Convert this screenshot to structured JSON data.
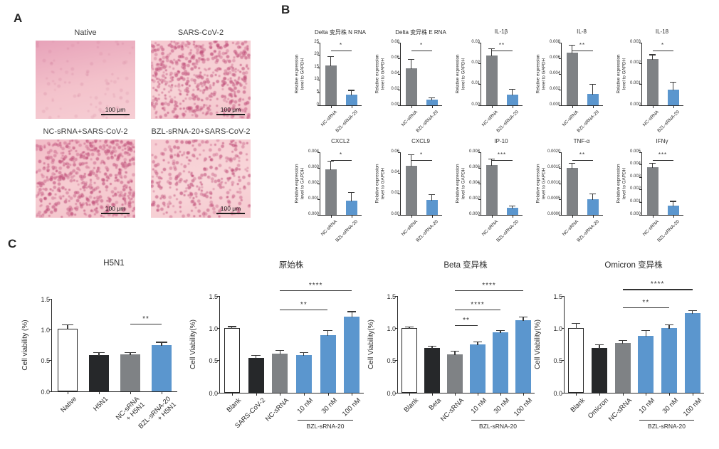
{
  "panel_a": {
    "label": "A",
    "images": [
      {
        "title": "Native",
        "scale_label": "100 μm",
        "density": "sparse",
        "bg": [
          "#e7a2b9",
          "#f3c2cb",
          "#f6ced4"
        ]
      },
      {
        "title": "SARS-CoV-2",
        "scale_label": "100 μm",
        "density": "dense",
        "bg": [
          "#f5c8d0",
          "#f7d3d6",
          "#f3c4cc"
        ]
      },
      {
        "title": "NC-sRNA+SARS-CoV-2",
        "scale_label": "100 μm",
        "density": "dense",
        "bg": [
          "#f2bcc7",
          "#f6cdd2",
          "#f3c3cb"
        ]
      },
      {
        "title": "BZL-sRNA-20+SARS-CoV-2",
        "scale_label": "100 μm",
        "density": "medium",
        "bg": [
          "#f6ccd2",
          "#f8d6d9",
          "#f5c9cf"
        ]
      }
    ]
  },
  "panel_b": {
    "label": "B"
  },
  "panel_c": {
    "label": "C"
  },
  "colors": {
    "bar_gray": "#7f8285",
    "bar_blue": "#5b96ce",
    "bar_black": "#26282a",
    "bar_white": "#ffffff",
    "axis": "#2a2a2a",
    "micro_dot": "rgba(192,80,122",
    "micro_dot_faint": "rgba(205,120,150"
  },
  "chart_data": [
    {
      "panel": "B",
      "id": "delta-n-rna",
      "type": "bar",
      "title": "Delta 变异株  N RNA",
      "ylabel": "Relative expression\nlevel to GAPDH",
      "categories": [
        "NC-sRNA",
        "BZL-sRNA-20"
      ],
      "values": [
        16,
        4.3
      ],
      "errors": [
        3.3,
        1.5
      ],
      "bar_colors": [
        "gray",
        "blue"
      ],
      "ylim": [
        0,
        25
      ],
      "yticks": [
        "0",
        "5",
        "10",
        "15",
        "20",
        "25"
      ],
      "sig": [
        {
          "from": 0,
          "to": 1,
          "stars": "*"
        }
      ]
    },
    {
      "panel": "B",
      "id": "delta-e-rna",
      "type": "bar",
      "title": "Delta 变异株  E RNA",
      "ylabel": "Relative expression\nlevel to GAPDH",
      "categories": [
        "NC-sRNA",
        "BZL-sRNA-20"
      ],
      "values": [
        0.047,
        0.007
      ],
      "errors": [
        0.011,
        0.002
      ],
      "bar_colors": [
        "gray",
        "blue"
      ],
      "ylim": [
        0,
        0.08
      ],
      "yticks": [
        "0.00",
        "0.02",
        "0.04",
        "0.06",
        "0.08"
      ],
      "sig": [
        {
          "from": 0,
          "to": 1,
          "stars": "*"
        }
      ]
    },
    {
      "panel": "B",
      "id": "il-1b",
      "type": "bar",
      "title": "IL-1β",
      "ylabel": "Relative expression\nlevel to GAPDH",
      "categories": [
        "NC-sRNA",
        "BZL-sRNA-20"
      ],
      "values": [
        0.024,
        0.005
      ],
      "errors": [
        0.003,
        0.0025
      ],
      "bar_colors": [
        "gray",
        "blue"
      ],
      "ylim": [
        0,
        0.03
      ],
      "yticks": [
        "0.00",
        "0.01",
        "0.02",
        "0.03"
      ],
      "sig": [
        {
          "from": 0,
          "to": 1,
          "stars": "**"
        }
      ]
    },
    {
      "panel": "B",
      "id": "il-8",
      "type": "bar",
      "title": "IL-8",
      "ylabel": "Relative expression\nlevel to GAPDH",
      "categories": [
        "NC-sRNA",
        "BZL-sRNA-20"
      ],
      "values": [
        0.0067,
        0.0015
      ],
      "errors": [
        0.0009,
        0.0011
      ],
      "bar_colors": [
        "gray",
        "blue"
      ],
      "ylim": [
        0,
        0.008
      ],
      "yticks": [
        "0.000",
        "0.002",
        "0.004",
        "0.006",
        "0.008"
      ],
      "sig": [
        {
          "from": 0,
          "to": 1,
          "stars": "**"
        }
      ]
    },
    {
      "panel": "B",
      "id": "il-18",
      "type": "bar",
      "title": "IL-18",
      "ylabel": "Relative expression\nlevel to GAPDH",
      "categories": [
        "NC-sRNA",
        "BZL-sRNA-20"
      ],
      "values": [
        0.0022,
        0.00075
      ],
      "errors": [
        0.0002,
        0.00035
      ],
      "bar_colors": [
        "gray",
        "blue"
      ],
      "ylim": [
        0,
        0.003
      ],
      "yticks": [
        "0.000",
        "0.001",
        "0.002",
        "0.003"
      ],
      "sig": [
        {
          "from": 0,
          "to": 1,
          "stars": "*"
        }
      ]
    },
    {
      "panel": "B",
      "id": "cxcl2",
      "type": "bar",
      "title": "CXCL2",
      "ylabel": "Relative expression\nlevel to GAPDH",
      "categories": [
        "NC-sRNA",
        "BZL-sRNA-20"
      ],
      "values": [
        0.0029,
        0.0009
      ],
      "errors": [
        0.0005,
        0.0005
      ],
      "bar_colors": [
        "gray",
        "blue"
      ],
      "ylim": [
        0,
        0.004
      ],
      "yticks": [
        "0.000",
        "0.001",
        "0.002",
        "0.003",
        "0.004"
      ],
      "sig": [
        {
          "from": 0,
          "to": 1,
          "stars": "*"
        }
      ]
    },
    {
      "panel": "B",
      "id": "cxcl9",
      "type": "bar",
      "title": "CXCL9",
      "ylabel": "Relative expression\nlevel to GAPDH",
      "categories": [
        "NC-sRNA",
        "BZL-sRNA-20"
      ],
      "values": [
        0.047,
        0.014
      ],
      "errors": [
        0.01,
        0.005
      ],
      "bar_colors": [
        "gray",
        "blue"
      ],
      "ylim": [
        0,
        0.06
      ],
      "yticks": [
        "0.00",
        "0.02",
        "0.04",
        "0.06"
      ],
      "sig": [
        {
          "from": 0,
          "to": 1,
          "stars": "*"
        }
      ]
    },
    {
      "panel": "B",
      "id": "ip-10",
      "type": "bar",
      "title": "IP-10",
      "ylabel": "Relative expression\nlevel to GAPDH",
      "categories": [
        "NC-sRNA",
        "BZL-sRNA-20"
      ],
      "values": [
        0.0064,
        0.0009
      ],
      "errors": [
        0.0007,
        0.0002
      ],
      "bar_colors": [
        "gray",
        "blue"
      ],
      "ylim": [
        0,
        0.008
      ],
      "yticks": [
        "0.000",
        "0.002",
        "0.004",
        "0.006",
        "0.008"
      ],
      "sig": [
        {
          "from": 0,
          "to": 1,
          "stars": "***"
        }
      ]
    },
    {
      "panel": "B",
      "id": "tnf-a",
      "type": "bar",
      "title": "TNF-α",
      "ylabel": "Relative expression\nlevel to GAPDH",
      "categories": [
        "NC-sRNA",
        "BZL-sRNA-20"
      ],
      "values": [
        0.0015,
        0.0005
      ],
      "errors": [
        0.00013,
        0.00015
      ],
      "bar_colors": [
        "gray",
        "blue"
      ],
      "ylim": [
        0,
        0.002
      ],
      "yticks": [
        "0.0000",
        "0.0005",
        "0.0010",
        "0.0015",
        "0.0020"
      ],
      "sig": [
        {
          "from": 0,
          "to": 1,
          "stars": "**"
        }
      ]
    },
    {
      "panel": "B",
      "id": "ifng",
      "type": "bar",
      "title": "IFNγ",
      "ylabel": "Relative expression\nlevel to GAPDH",
      "categories": [
        "NC-sRNA",
        "BZL-sRNA-20"
      ],
      "values": [
        0.0038,
        0.00075
      ],
      "errors": [
        0.0003,
        0.0003
      ],
      "bar_colors": [
        "gray",
        "blue"
      ],
      "ylim": [
        0,
        0.005
      ],
      "yticks": [
        "0.000",
        "0.001",
        "0.002",
        "0.003",
        "0.004",
        "0.005"
      ],
      "sig": [
        {
          "from": 0,
          "to": 1,
          "stars": "***"
        }
      ]
    },
    {
      "panel": "C",
      "id": "h5n1",
      "type": "bar",
      "title": "H5N1",
      "ylabel": "Cell viability (%)",
      "categories": [
        "Native",
        "H5N1",
        "NC-sRNA\n+ H5N1",
        "BZL-sRNA-20\n+ H5N1"
      ],
      "values": [
        1.02,
        0.59,
        0.6,
        0.75
      ],
      "errors": [
        0.05,
        0.03,
        0.02,
        0.04
      ],
      "bar_colors": [
        "white",
        "black",
        "gray",
        "blue"
      ],
      "ylim": [
        0,
        1.5
      ],
      "yticks": [
        "0.0",
        "0.5",
        "1.0",
        "1.5"
      ],
      "sig": [
        {
          "from": 2,
          "to": 3,
          "stars": "**"
        }
      ]
    },
    {
      "panel": "C",
      "id": "wild-type",
      "type": "bar",
      "title": "原始株",
      "ylabel": "Cell Viability(%)",
      "categories": [
        "Blank",
        "SARS-CoV-2",
        "NC-sRNA",
        "10 nM",
        "30 nM",
        "100 nM"
      ],
      "values": [
        1.0,
        0.54,
        0.61,
        0.59,
        0.89,
        1.18
      ],
      "errors": [
        0.02,
        0.03,
        0.04,
        0.03,
        0.07,
        0.07
      ],
      "bar_colors": [
        "white",
        "black",
        "gray",
        "blue",
        "blue",
        "blue"
      ],
      "ylim": [
        0,
        1.5
      ],
      "yticks": [
        "0.0",
        "0.5",
        "1.0",
        "1.5"
      ],
      "sig": [
        {
          "from": 2,
          "to": 4,
          "stars": "**"
        },
        {
          "from": 2,
          "to": 5,
          "stars": "****"
        }
      ],
      "group": {
        "from": 3,
        "to": 5,
        "label": "BZL-sRNA-20"
      }
    },
    {
      "panel": "C",
      "id": "beta",
      "type": "bar",
      "title": "Beta 变异株",
      "ylabel": "Cell Viability(%)",
      "categories": [
        "Blank",
        "Beta",
        "NC-sRNA",
        "10 nM",
        "30 nM",
        "100 nM"
      ],
      "values": [
        1.0,
        0.7,
        0.6,
        0.75,
        0.94,
        1.13
      ],
      "errors": [
        0.01,
        0.02,
        0.04,
        0.03,
        0.02,
        0.04
      ],
      "bar_colors": [
        "white",
        "black",
        "gray",
        "blue",
        "blue",
        "blue"
      ],
      "ylim": [
        0,
        1.5
      ],
      "yticks": [
        "0.0",
        "0.5",
        "1.0",
        "1.5"
      ],
      "sig": [
        {
          "from": 2,
          "to": 3,
          "stars": "**"
        },
        {
          "from": 2,
          "to": 4,
          "stars": "****"
        },
        {
          "from": 2,
          "to": 5,
          "stars": "****"
        }
      ],
      "group": {
        "from": 3,
        "to": 5,
        "label": "BZL-sRNA-20"
      }
    },
    {
      "panel": "C",
      "id": "omicron",
      "type": "bar",
      "title": "Omicron 变异株",
      "ylabel": "Cell Viability(%)",
      "categories": [
        "Blank",
        "Omicron",
        "NC-sRNA",
        "10 nM",
        "30 nM",
        "100 nM"
      ],
      "values": [
        1.0,
        0.69,
        0.77,
        0.88,
        1.0,
        1.23
      ],
      "errors": [
        0.07,
        0.05,
        0.03,
        0.08,
        0.05,
        0.04
      ],
      "bar_colors": [
        "white",
        "black",
        "gray",
        "blue",
        "blue",
        "blue"
      ],
      "ylim": [
        0,
        1.5
      ],
      "yticks": [
        "0.0",
        "0.5",
        "1.0",
        "1.5"
      ],
      "sig": [
        {
          "from": 2,
          "to": 4,
          "stars": "**"
        },
        {
          "from": 2,
          "to": 5,
          "stars": "****"
        }
      ],
      "group": {
        "from": 3,
        "to": 5,
        "label": "BZL-sRNA-20"
      }
    }
  ]
}
